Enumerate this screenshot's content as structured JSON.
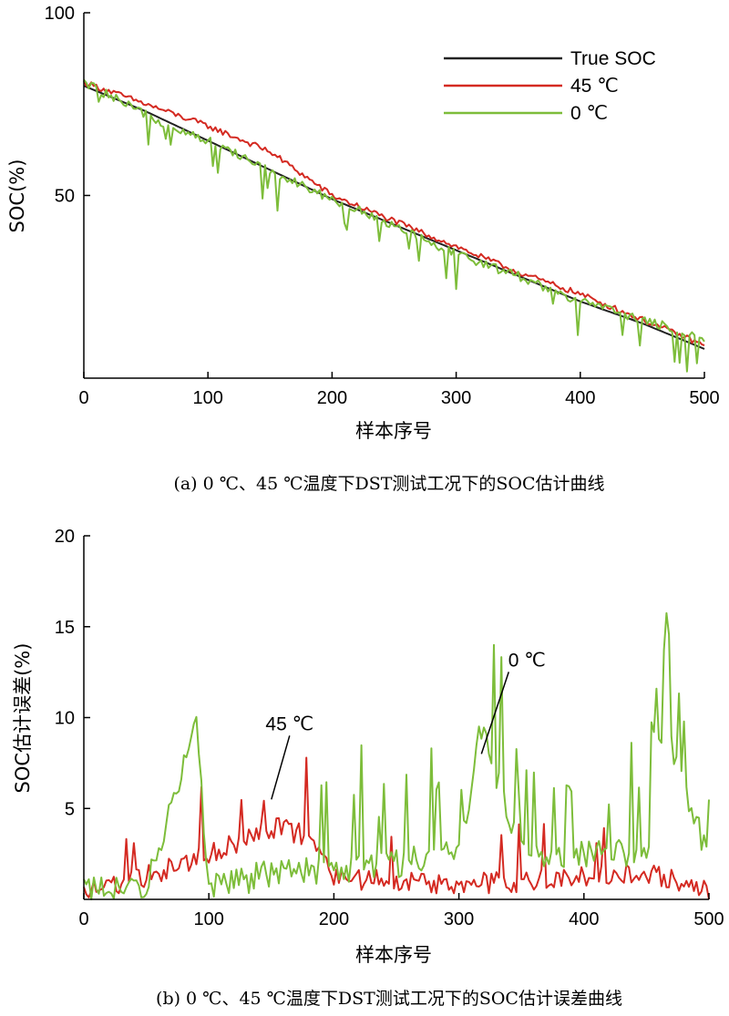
{
  "chart_data": [
    {
      "type": "line",
      "panel_caption": "(a) 0 ℃、45 ℃温度下DST测试工况下的SOC估计曲线",
      "xlabel": "样本序号",
      "ylabel": "SOC(%)",
      "xlim": [
        0,
        500
      ],
      "ylim": [
        0,
        100
      ],
      "xticks": [
        "0",
        "100",
        "200",
        "300",
        "400",
        "500"
      ],
      "yticks": [
        "50",
        "100"
      ],
      "legend_position": "top-right",
      "series": [
        {
          "name": "True SOC",
          "color": "#222222",
          "x": [
            0,
            50,
            100,
            150,
            200,
            250,
            300,
            350,
            400,
            450,
            500
          ],
          "y": [
            80,
            73,
            65,
            57,
            49,
            42,
            35,
            28,
            21,
            15,
            8
          ]
        },
        {
          "name": "45 ℃",
          "color": "#d42a22",
          "x": [
            0,
            50,
            100,
            150,
            200,
            250,
            300,
            350,
            400,
            450,
            500
          ],
          "y": [
            81,
            75,
            69,
            62,
            50,
            43,
            36,
            29,
            23,
            16,
            9
          ]
        },
        {
          "name": "0 ℃",
          "color": "#7dbd3a",
          "x": [
            0,
            50,
            100,
            150,
            200,
            250,
            300,
            350,
            400,
            450,
            500
          ],
          "y": [
            81,
            72,
            65,
            57,
            49,
            42,
            34,
            28,
            21,
            16,
            11
          ]
        }
      ]
    },
    {
      "type": "line",
      "panel_caption": "(b) 0 ℃、45 ℃温度下DST测试工况下的SOC估计误差曲线",
      "xlabel": "样本序号",
      "ylabel": "SOC估计误差(%)",
      "xlim": [
        0,
        500
      ],
      "ylim": [
        0,
        20
      ],
      "xticks": [
        "0",
        "100",
        "200",
        "300",
        "400",
        "500"
      ],
      "yticks": [
        "5",
        "10",
        "15",
        "20"
      ],
      "annotations": [
        {
          "text": "45 ℃",
          "x": 150,
          "y": 5.5
        },
        {
          "text": "0 ℃",
          "x": 318,
          "y": 8.0
        }
      ],
      "series": [
        {
          "name": "45 ℃",
          "color": "#d42a22",
          "x": [
            0,
            40,
            80,
            120,
            150,
            180,
            200,
            250,
            300,
            350,
            400,
            450,
            500
          ],
          "y": [
            0.5,
            1.0,
            2.0,
            3.0,
            4.0,
            3.5,
            1.2,
            1.0,
            0.8,
            1.0,
            1.2,
            1.5,
            0.5
          ]
        },
        {
          "name": "0 ℃",
          "color": "#7dbd3a",
          "x": [
            0,
            50,
            90,
            100,
            150,
            200,
            250,
            300,
            318,
            350,
            400,
            450,
            465,
            500
          ],
          "y": [
            0.8,
            0.5,
            10.0,
            0.5,
            1.5,
            1.5,
            2.0,
            2.5,
            9.5,
            2.5,
            2.5,
            2.5,
            9.5,
            2.0
          ]
        }
      ]
    }
  ]
}
